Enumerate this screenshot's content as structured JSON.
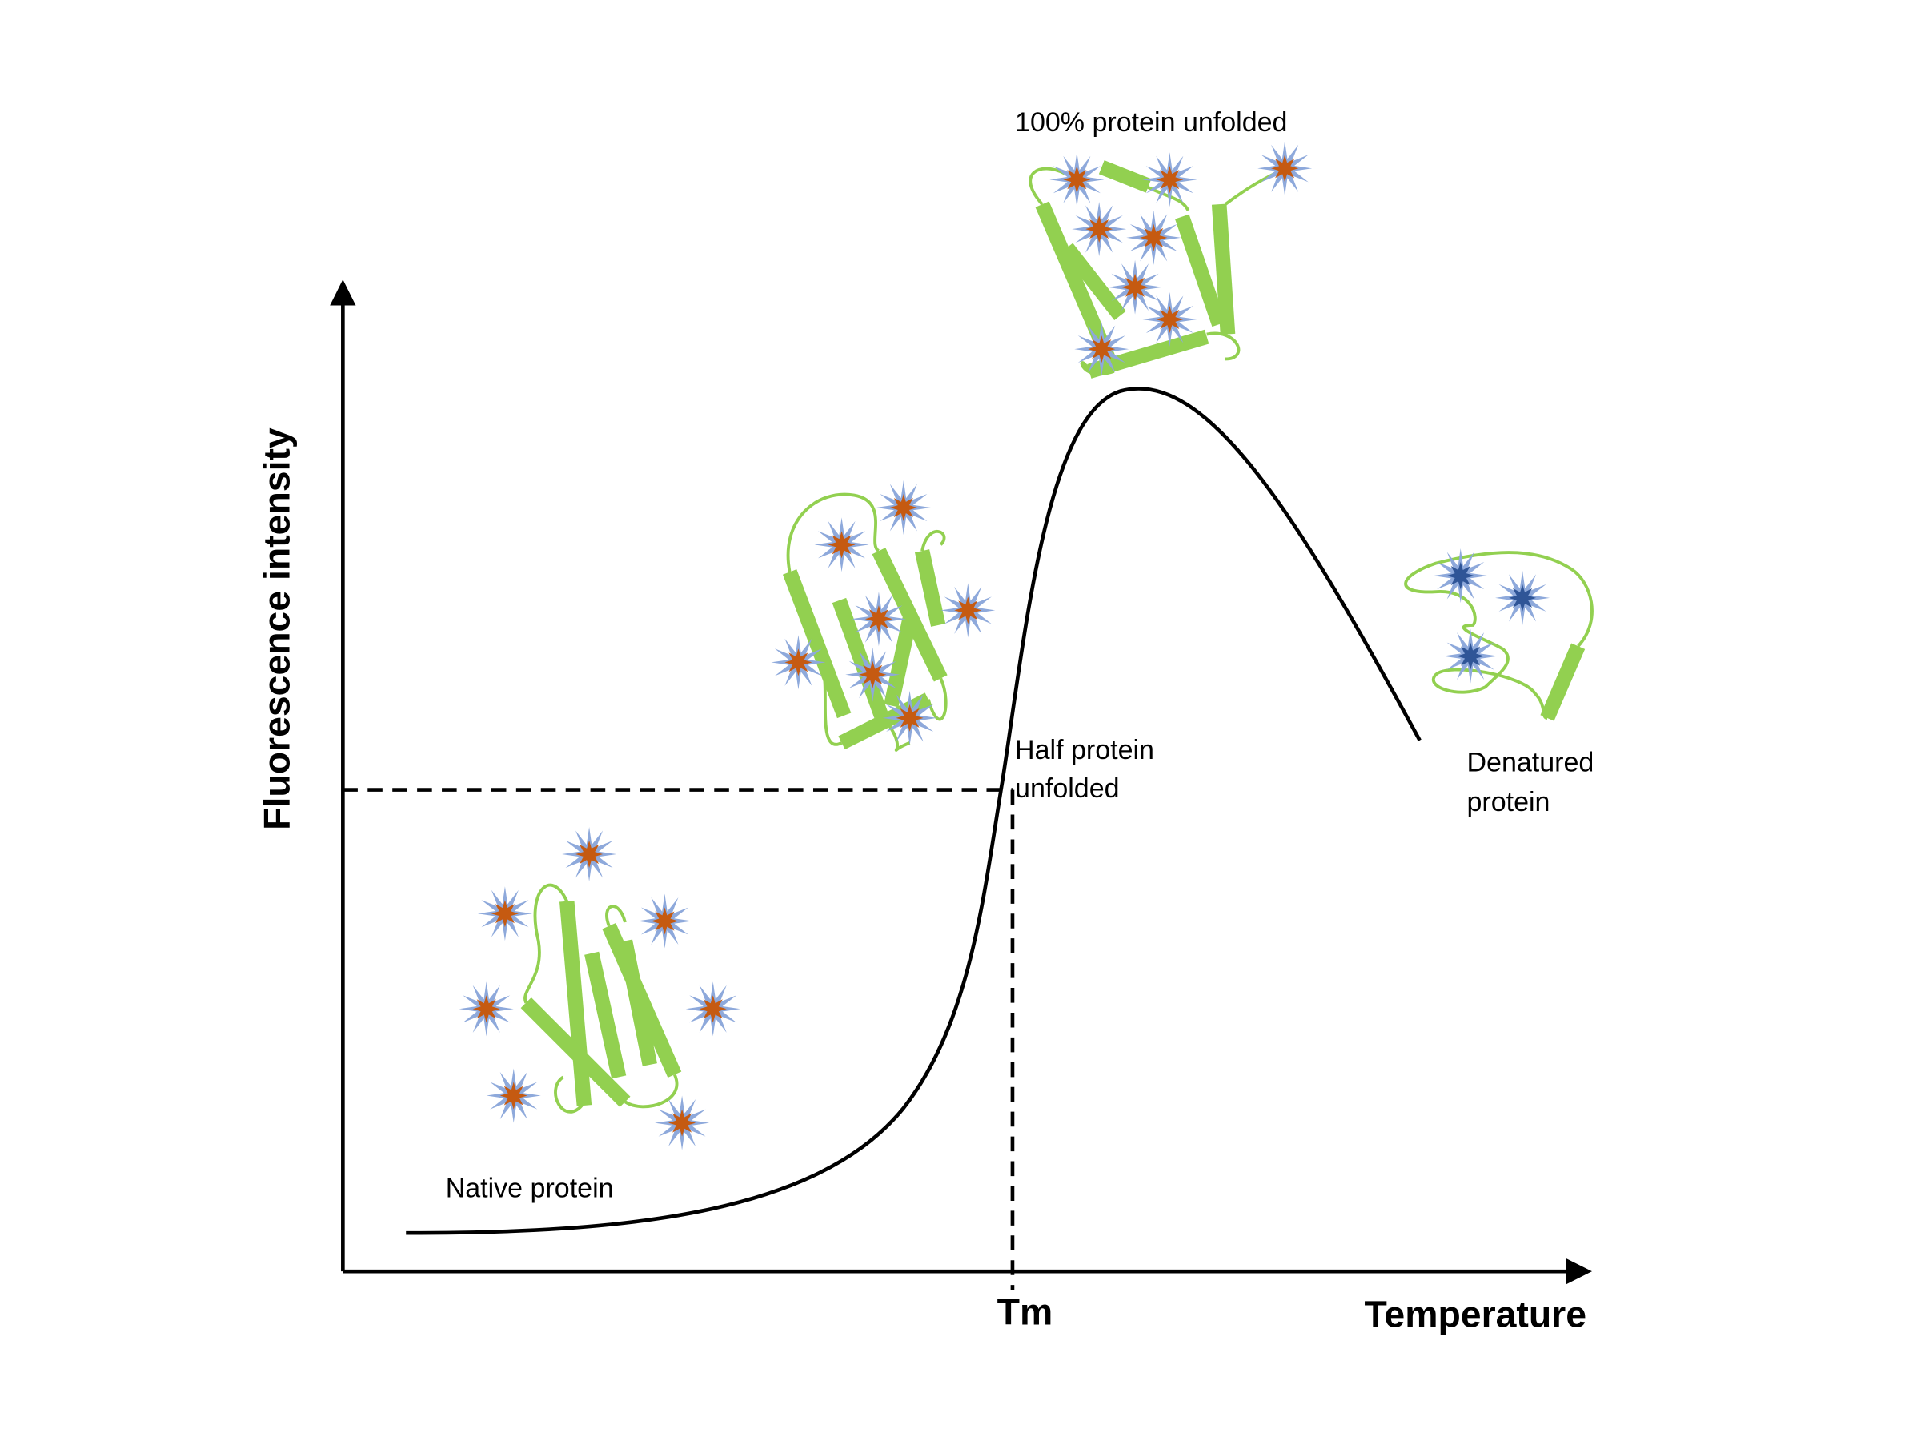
{
  "labels": {
    "y_axis": "Fluorescence intensity",
    "x_axis": "Temperature",
    "tm": "Tm",
    "native": "Native protein",
    "half": [
      "Half protein",
      "unfolded"
    ],
    "full": "100% protein unfolded",
    "denatured": [
      "Denatured",
      "protein"
    ]
  }
}
